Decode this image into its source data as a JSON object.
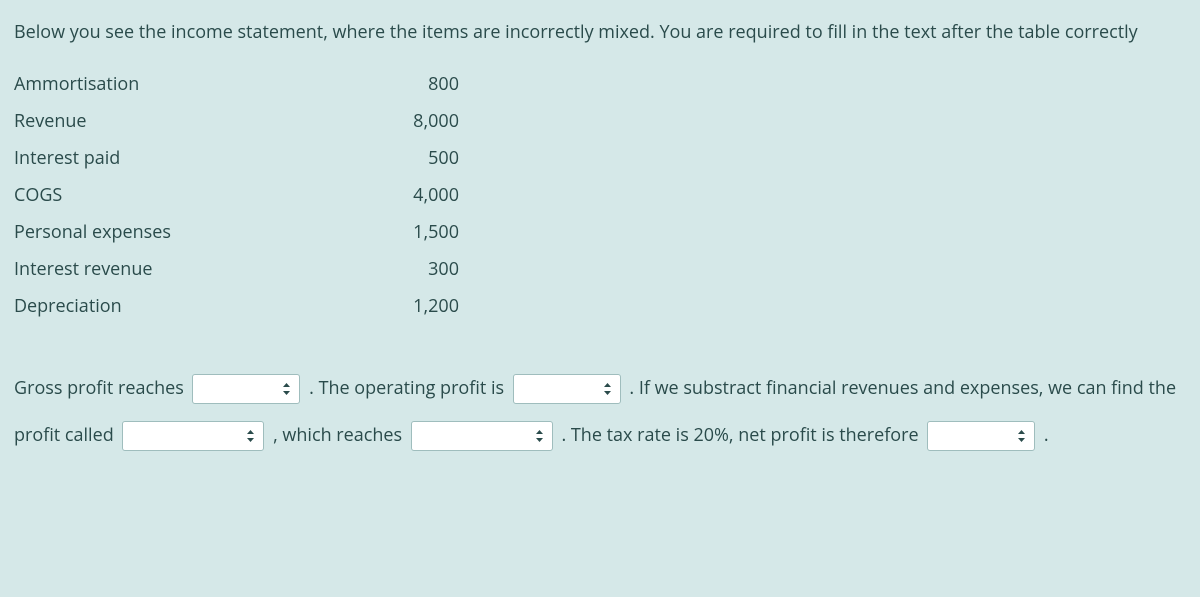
{
  "colors": {
    "background": "#d5e8e8",
    "text": "#2a4b4b",
    "dropdown_bg": "#ffffff",
    "dropdown_border": "#9fbdbd"
  },
  "typography": {
    "font_family": "Segoe UI, Open Sans, Arial, sans-serif",
    "font_size_pt": 13
  },
  "instructions": "Below you see the income statement, where the items are incorrectly mixed. You are required to fill in the text after the table correctly",
  "table": {
    "rows": [
      {
        "label": "Ammortisation",
        "value": "800"
      },
      {
        "label": "Revenue",
        "value": "8,000"
      },
      {
        "label": "Interest paid",
        "value": "500"
      },
      {
        "label": "COGS",
        "value": "4,000"
      },
      {
        "label": "Personal expenses",
        "value": "1,500"
      },
      {
        "label": "Interest revenue",
        "value": "300"
      },
      {
        "label": "Depreciation",
        "value": "1,200"
      }
    ]
  },
  "fill": {
    "s1": "Gross profit reaches ",
    "s2": " . The operating profit is ",
    "s3": " . If we substract financial revenues and expenses, we can find the profit called ",
    "s4": " , which reaches ",
    "s5": " . The tax rate is 20%, net profit is therefore ",
    "s6": " ."
  },
  "dropdowns": {
    "d1": {
      "value": ""
    },
    "d2": {
      "value": ""
    },
    "d3": {
      "value": ""
    },
    "d4": {
      "value": ""
    },
    "d5": {
      "value": ""
    }
  }
}
